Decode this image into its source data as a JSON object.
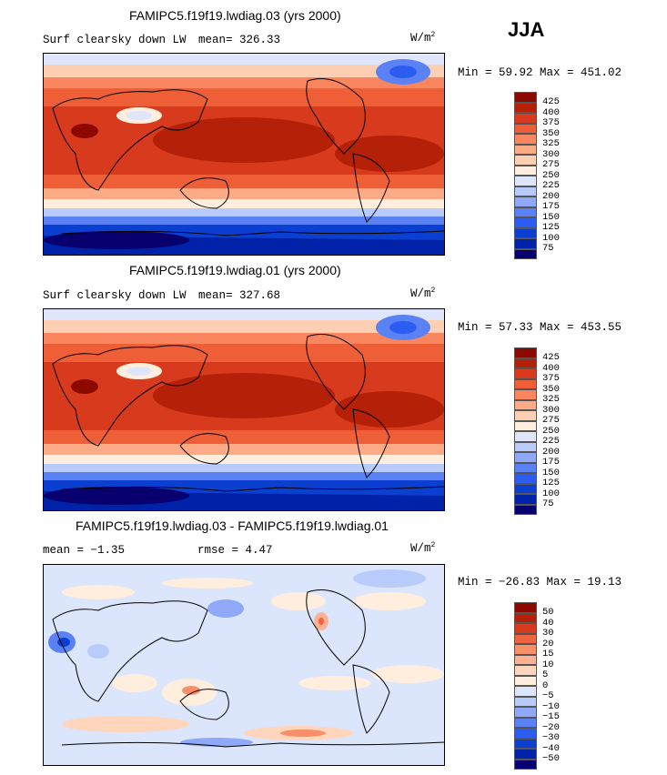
{
  "season": "JJA",
  "colors": {
    "abs_scale": [
      "#08006e",
      "#0022a8",
      "#0b3fcf",
      "#2d5cf0",
      "#5a82f5",
      "#8fa9f8",
      "#b9cbfa",
      "#dfe6fc",
      "#ffeedd",
      "#ffcfb4",
      "#fdaa87",
      "#f9865f",
      "#ee5e37",
      "#d73a1c",
      "#b52008",
      "#8c0900"
    ],
    "diff_scale": [
      "#08006e",
      "#0022a8",
      "#0b3fcf",
      "#2d5cf0",
      "#5a82f5",
      "#8fa9f8",
      "#b9cbfa",
      "#dbe5fb",
      "#ffeedd",
      "#ffd5bc",
      "#fdb393",
      "#f98f68",
      "#ee6440",
      "#d73a1c",
      "#b52008",
      "#8c0900"
    ]
  },
  "panels": [
    {
      "title": "FAMIPC5.f19f19.lwdiag.03 (yrs 2000)",
      "variable": "Surf clearsky down LW",
      "mean_label": "mean= 326.33",
      "units": "W/m",
      "units_sup": "2",
      "minmax": "Min =  59.92 Max = 451.02",
      "tick_labels": [
        "425",
        "400",
        "375",
        "350",
        "325",
        "300",
        "275",
        "250",
        "225",
        "200",
        "175",
        "150",
        "125",
        "100",
        "75"
      ]
    },
    {
      "title": "FAMIPC5.f19f19.lwdiag.01 (yrs 2000)",
      "variable": "Surf clearsky down LW",
      "mean_label": "mean= 327.68",
      "units": "W/m",
      "units_sup": "2",
      "minmax": "Min =  57.33 Max = 453.55",
      "tick_labels": [
        "425",
        "400",
        "375",
        "350",
        "325",
        "300",
        "275",
        "250",
        "225",
        "200",
        "175",
        "150",
        "125",
        "100",
        "75"
      ]
    },
    {
      "title": "FAMIPC5.f19f19.lwdiag.03 - FAMIPC5.f19f19.lwdiag.01",
      "mean_label": "mean =  −1.35",
      "rmse_label": "rmse =   4.47",
      "units": "W/m",
      "units_sup": "2",
      "minmax": "Min = −26.83 Max =  19.13",
      "tick_labels": [
        "50",
        "40",
        "30",
        "20",
        "15",
        "10",
        "5",
        "0",
        "−5",
        "−10",
        "−15",
        "−20",
        "−30",
        "−40",
        "−50"
      ]
    }
  ],
  "chart_data": [
    {
      "type": "heatmap",
      "title": "FAMIPC5.f19f19.lwdiag.03 (yrs 2000)",
      "variable": "Surf clearsky down LW",
      "units": "W/m2",
      "mean": 326.33,
      "min": 59.92,
      "max": 451.02,
      "contour_levels": [
        75,
        100,
        125,
        150,
        175,
        200,
        225,
        250,
        275,
        300,
        325,
        350,
        375,
        400,
        425
      ],
      "projection": "cylindrical equidistant, centered on Pacific"
    },
    {
      "type": "heatmap",
      "title": "FAMIPC5.f19f19.lwdiag.01 (yrs 2000)",
      "variable": "Surf clearsky down LW",
      "units": "W/m2",
      "mean": 327.68,
      "min": 57.33,
      "max": 453.55,
      "contour_levels": [
        75,
        100,
        125,
        150,
        175,
        200,
        225,
        250,
        275,
        300,
        325,
        350,
        375,
        400,
        425
      ],
      "projection": "cylindrical equidistant, centered on Pacific"
    },
    {
      "type": "heatmap",
      "title": "FAMIPC5.f19f19.lwdiag.03 - FAMIPC5.f19f19.lwdiag.01",
      "units": "W/m2",
      "mean": -1.35,
      "rmse": 4.47,
      "min": -26.83,
      "max": 19.13,
      "contour_levels": [
        -50,
        -40,
        -30,
        -20,
        -15,
        -10,
        -5,
        0,
        5,
        10,
        15,
        20,
        30,
        40,
        50
      ],
      "projection": "cylindrical equidistant, centered on Pacific"
    }
  ]
}
